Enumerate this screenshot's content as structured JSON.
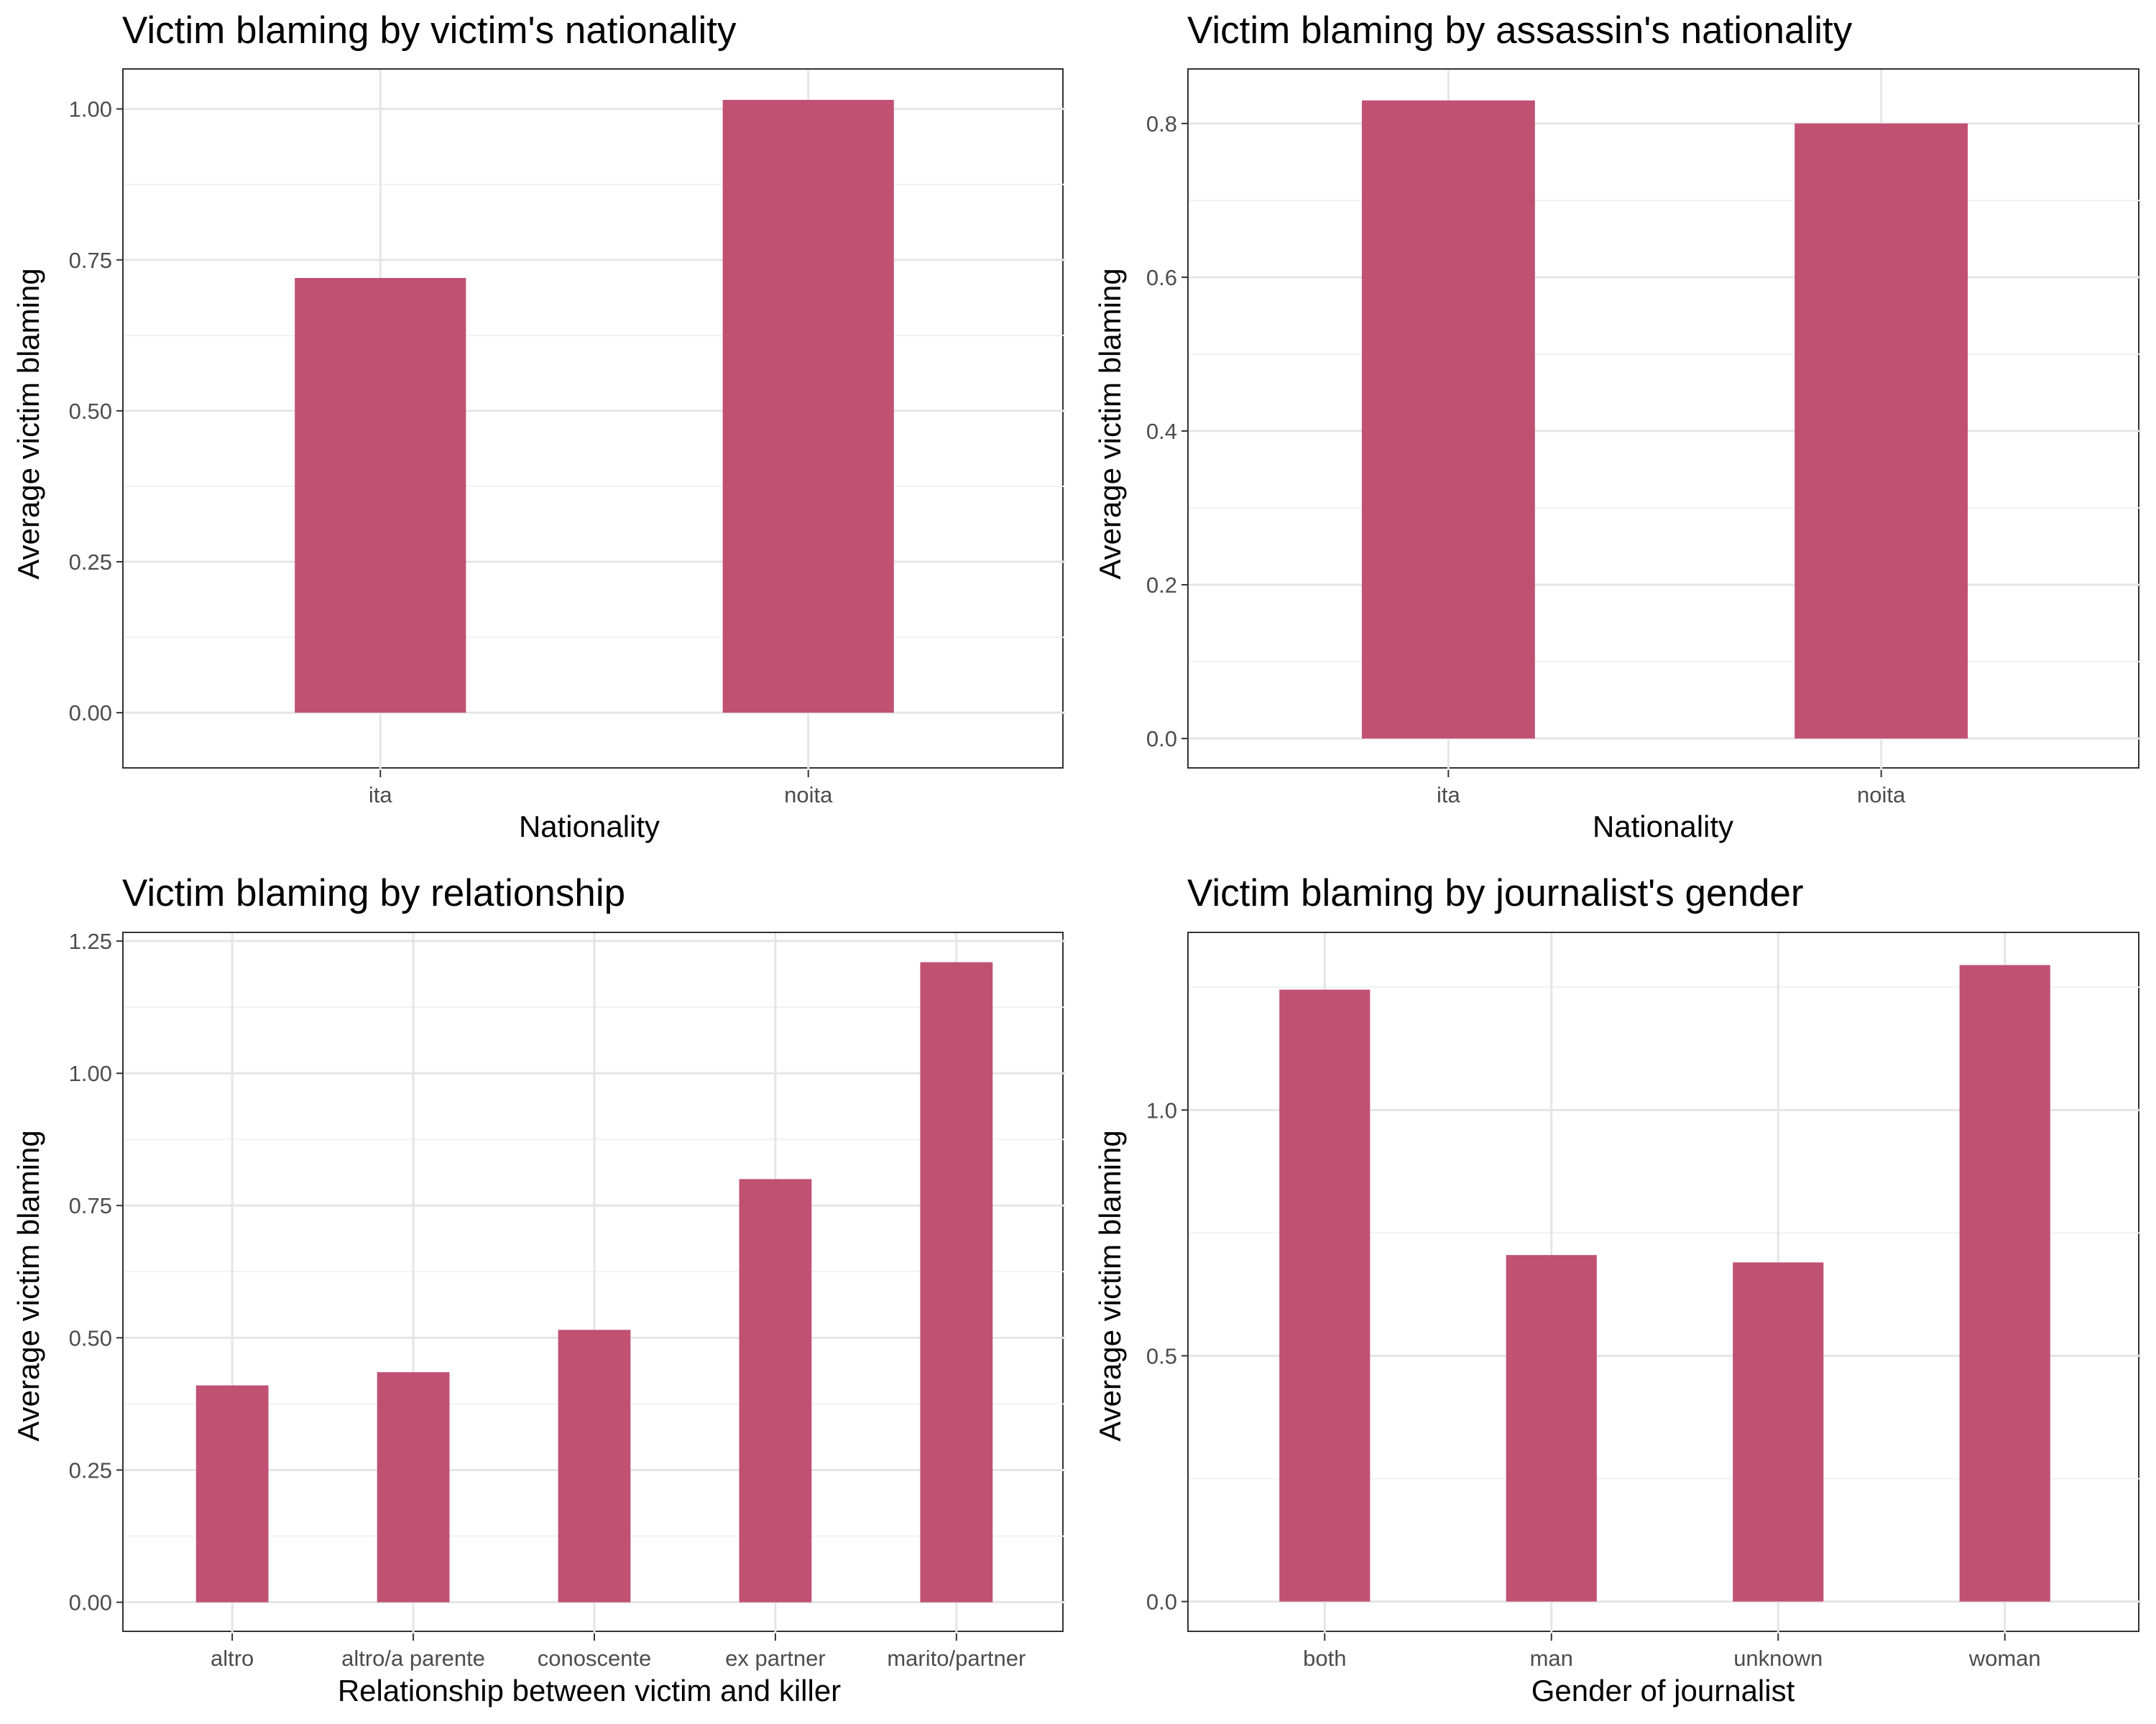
{
  "colors": {
    "bar": "#c05173",
    "grid_major": "#e5e5e5",
    "grid_minor": "#f1f1f1",
    "border": "#333333",
    "tick_text": "#4d4d4d"
  },
  "chart_data": [
    {
      "type": "bar",
      "title": "Victim blaming by victim's nationality",
      "xlabel": "Nationality",
      "ylabel": "Average victim blaming",
      "categories": [
        "ita",
        "noita"
      ],
      "values": [
        0.72,
        1.015
      ],
      "ylim": [
        -0.095,
        1.065
      ],
      "yticks": [
        0.0,
        0.25,
        0.5,
        0.75,
        1.0
      ],
      "ytick_labels": [
        "0.00",
        "0.25",
        "0.50",
        "0.75",
        "1.00"
      ],
      "grid": true
    },
    {
      "type": "bar",
      "title": "Victim blaming by assassin's nationality",
      "xlabel": "Nationality",
      "ylabel": "Average victim blaming",
      "categories": [
        "ita",
        "noita"
      ],
      "values": [
        0.83,
        0.8
      ],
      "ylim": [
        -0.041,
        0.87
      ],
      "yticks": [
        0.0,
        0.2,
        0.4,
        0.6,
        0.8
      ],
      "ytick_labels": [
        "0.0",
        "0.2",
        "0.4",
        "0.6",
        "0.8"
      ],
      "grid": true
    },
    {
      "type": "bar",
      "title": "Victim blaming by relationship",
      "xlabel": "Relationship between victim and killer",
      "ylabel": "Average victim blaming",
      "categories": [
        "altro",
        "altro/a parente",
        "conoscente",
        "ex partner",
        "marito/partner"
      ],
      "values": [
        0.41,
        0.435,
        0.515,
        0.8,
        1.21
      ],
      "ylim": [
        -0.059,
        1.265
      ],
      "yticks": [
        0.0,
        0.25,
        0.5,
        0.75,
        1.0,
        1.25
      ],
      "ytick_labels": [
        "0.00",
        "0.25",
        "0.50",
        "0.75",
        "1.00",
        "1.25"
      ],
      "grid": true
    },
    {
      "type": "bar",
      "title": "Victim blaming by journalist's gender",
      "xlabel": "Gender of journalist",
      "ylabel": "Average victim blaming",
      "categories": [
        "both",
        "man",
        "unknown",
        "woman"
      ],
      "values": [
        1.245,
        0.705,
        0.69,
        1.295
      ],
      "ylim": [
        -0.065,
        1.36
      ],
      "yticks": [
        0.0,
        0.5,
        1.0
      ],
      "ytick_labels": [
        "0.0",
        "0.5",
        "1.0"
      ],
      "grid": true
    }
  ]
}
